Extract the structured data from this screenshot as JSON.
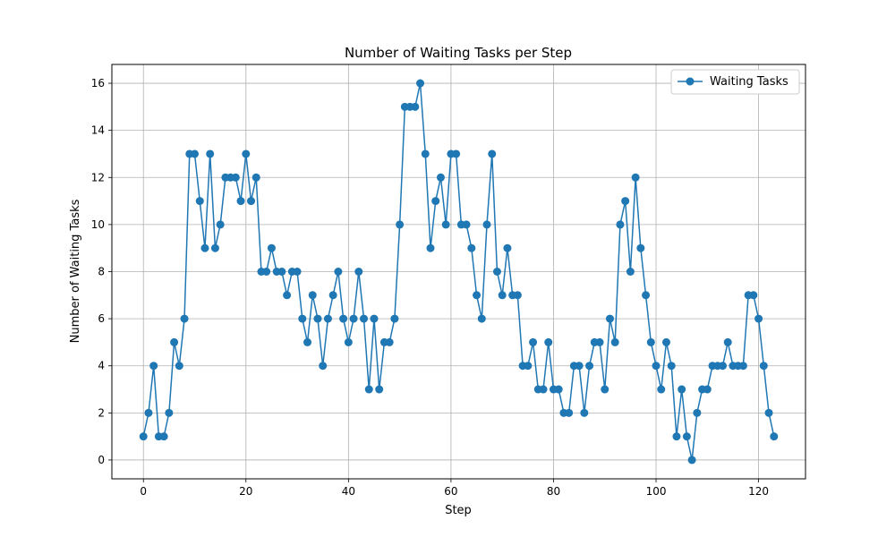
{
  "chart_data": {
    "type": "line",
    "title": "Number of Waiting Tasks per Step",
    "xlabel": "Step",
    "ylabel": "Number of Waiting Tasks",
    "xlim": [
      -6.15,
      129.15
    ],
    "ylim": [
      -0.8,
      16.8
    ],
    "xticks": [
      0,
      20,
      40,
      60,
      80,
      100,
      120
    ],
    "yticks": [
      0,
      2,
      4,
      6,
      8,
      10,
      12,
      14,
      16
    ],
    "grid": true,
    "legend_position": "top-right",
    "series": [
      {
        "name": "Waiting Tasks",
        "color": "#1f77b4",
        "marker": "circle",
        "x": [
          0,
          1,
          2,
          3,
          4,
          5,
          6,
          7,
          8,
          9,
          10,
          11,
          12,
          13,
          14,
          15,
          16,
          17,
          18,
          19,
          20,
          21,
          22,
          23,
          24,
          25,
          26,
          27,
          28,
          29,
          30,
          31,
          32,
          33,
          34,
          35,
          36,
          37,
          38,
          39,
          40,
          41,
          42,
          43,
          44,
          45,
          46,
          47,
          48,
          49,
          50,
          51,
          52,
          53,
          54,
          55,
          56,
          57,
          58,
          59,
          60,
          61,
          62,
          63,
          64,
          65,
          66,
          67,
          68,
          69,
          70,
          71,
          72,
          73,
          74,
          75,
          76,
          77,
          78,
          79,
          80,
          81,
          82,
          83,
          84,
          85,
          86,
          87,
          88,
          89,
          90,
          91,
          92,
          93,
          94,
          95,
          96,
          97,
          98,
          99,
          100,
          101,
          102,
          103,
          104,
          105,
          106,
          107,
          108,
          109,
          110,
          111,
          112,
          113,
          114,
          115,
          116,
          117,
          118,
          119,
          120,
          121,
          122,
          123
        ],
        "values": [
          1,
          2,
          4,
          1,
          1,
          2,
          5,
          4,
          6,
          13,
          13,
          11,
          9,
          13,
          9,
          10,
          12,
          12,
          12,
          11,
          13,
          11,
          12,
          8,
          8,
          9,
          8,
          8,
          7,
          8,
          8,
          6,
          5,
          7,
          6,
          4,
          6,
          7,
          8,
          6,
          5,
          6,
          8,
          6,
          3,
          6,
          3,
          5,
          5,
          6,
          10,
          15,
          15,
          15,
          16,
          13,
          9,
          11,
          12,
          10,
          13,
          13,
          10,
          10,
          9,
          7,
          6,
          10,
          13,
          8,
          7,
          9,
          7,
          7,
          4,
          4,
          5,
          3,
          3,
          5,
          3,
          3,
          2,
          2,
          4,
          4,
          2,
          4,
          5,
          5,
          3,
          6,
          5,
          10,
          11,
          8,
          12,
          9,
          7,
          5,
          4,
          3,
          5,
          4,
          1,
          3,
          1,
          0,
          2,
          3,
          3,
          4,
          4,
          4,
          5,
          4,
          4,
          4,
          7,
          7,
          6,
          4,
          2,
          1
        ]
      }
    ]
  }
}
